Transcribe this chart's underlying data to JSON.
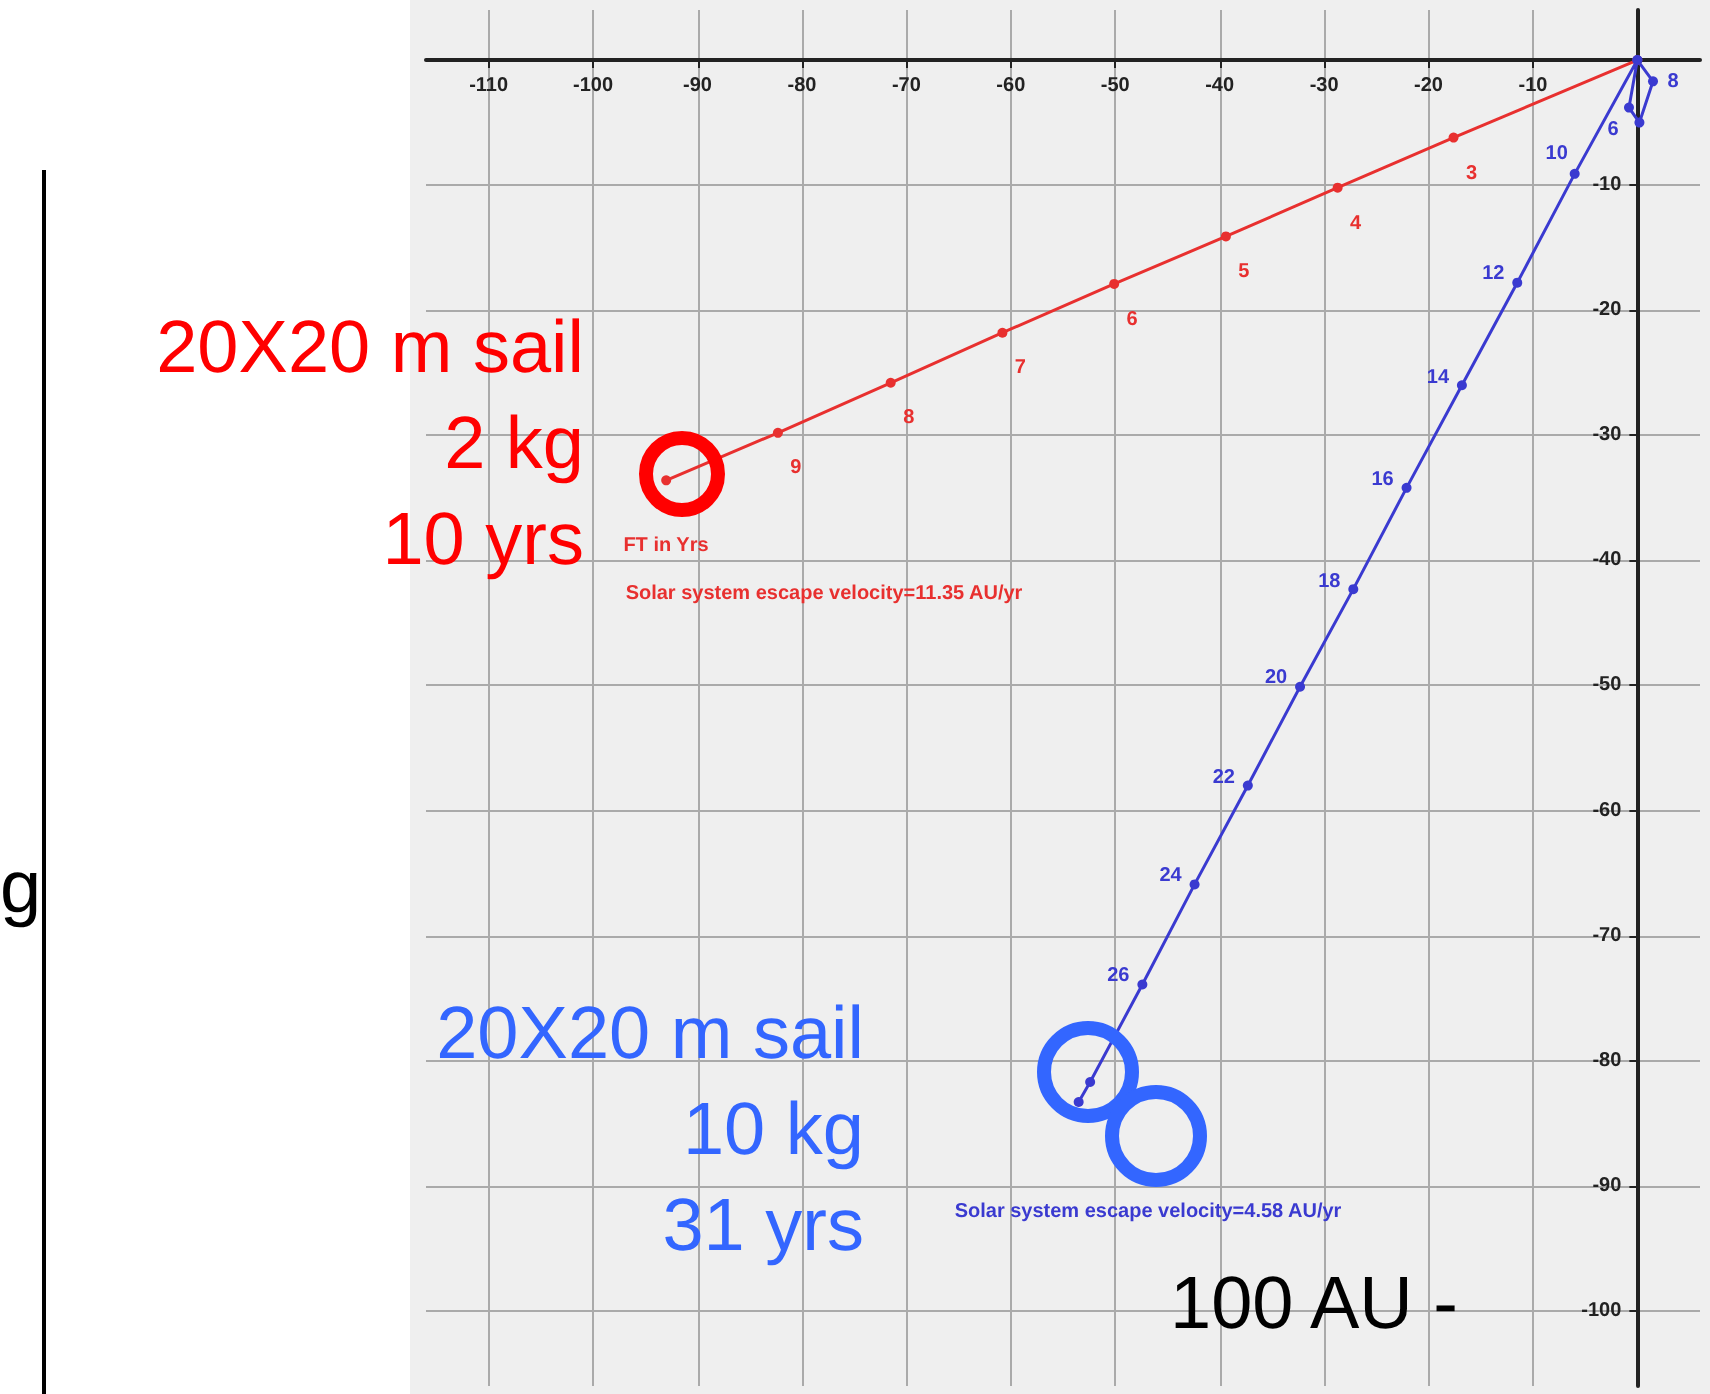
{
  "chart_data": {
    "type": "line",
    "series": [
      {
        "color": "#e8302f",
        "x": [
          0,
          -17.6,
          -28.7,
          -39.4,
          -50.1,
          -60.8,
          -71.5,
          -82.3,
          -93.0
        ],
        "values": [
          0,
          -6.2,
          -10.2,
          -14.1,
          -17.9,
          -21.8,
          -25.8,
          -29.8,
          -33.6
        ]
      },
      {
        "color": "#3a3ad0",
        "x": [
          0,
          -0.8,
          0.2,
          1.5,
          0,
          -6.0,
          -11.5,
          -16.8,
          -22.1,
          -27.2,
          -32.3,
          -37.3,
          -42.4,
          -47.4,
          -52.4,
          -53.5
        ],
        "values": [
          0,
          -3.8,
          -5.0,
          -1.7,
          0,
          -9.1,
          -17.8,
          -26.0,
          -34.2,
          -42.3,
          -50.1,
          -58.0,
          -65.9,
          -73.9,
          -81.7,
          -83.3
        ]
      }
    ],
    "xlim": [
      -116,
      6
    ],
    "xticks": [
      -110,
      -100,
      -90,
      -80,
      -70,
      -60,
      -50,
      -40,
      -30,
      -20,
      -10,
      {
        "value": 0,
        "label": null
      }
    ],
    "ylim": [
      -106,
      4
    ],
    "yticks": [
      {
        "value": 0,
        "label": null
      },
      -10,
      -20,
      -30,
      -40,
      -50,
      -60,
      -70,
      -80,
      -90,
      -100
    ],
    "grid": true,
    "marker": "circle",
    "line_style": "solid",
    "annotations": [
      "20X20 m sail\n2 kg\n10 yrs",
      "20X20 m sail\n10 kg\n31 yrs",
      "100 AU -",
      "g",
      "FT in Yrs",
      "Solar system escape velocity=11.35 AU/yr",
      "Solar system escape velocity=4.58 AU/yr",
      "3",
      "4",
      "5",
      "6",
      "7",
      "8",
      "9",
      "6",
      "8",
      "10",
      "12",
      "14",
      "16",
      "18",
      "20",
      "22",
      "24",
      "26"
    ]
  }
}
